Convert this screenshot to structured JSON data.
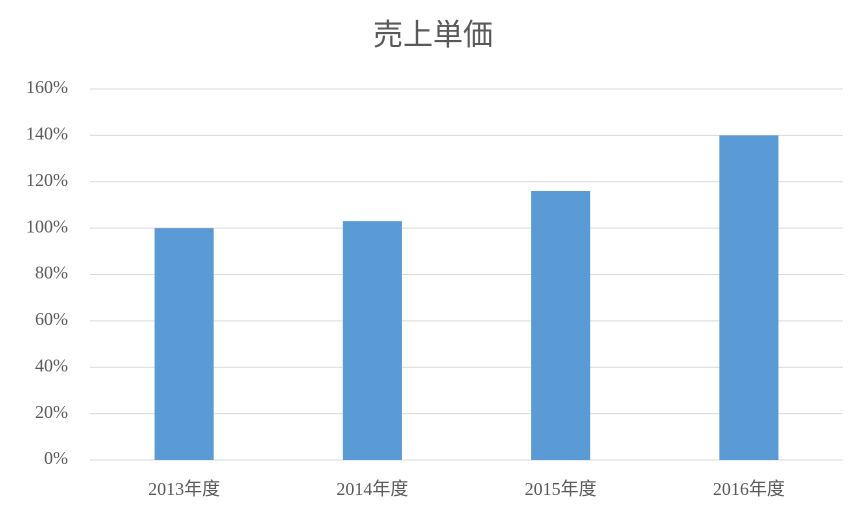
{
  "chart_data": {
    "type": "bar",
    "title": "売上単価",
    "categories": [
      "2013年度",
      "2014年度",
      "2015年度",
      "2016年度"
    ],
    "values": [
      100,
      103,
      116,
      140
    ],
    "color": "#5b9bd5",
    "ylim": [
      0,
      160
    ],
    "yticks": [
      {
        "value": 0,
        "label": "0%"
      },
      {
        "value": 20,
        "label": "20%"
      },
      {
        "value": 40,
        "label": "40%"
      },
      {
        "value": 60,
        "label": "60%"
      },
      {
        "value": 80,
        "label": "80%"
      },
      {
        "value": 100,
        "label": "100%"
      },
      {
        "value": 120,
        "label": "120%"
      },
      {
        "value": 140,
        "label": "140%"
      },
      {
        "value": 160,
        "label": "160%"
      }
    ],
    "grid": true
  }
}
